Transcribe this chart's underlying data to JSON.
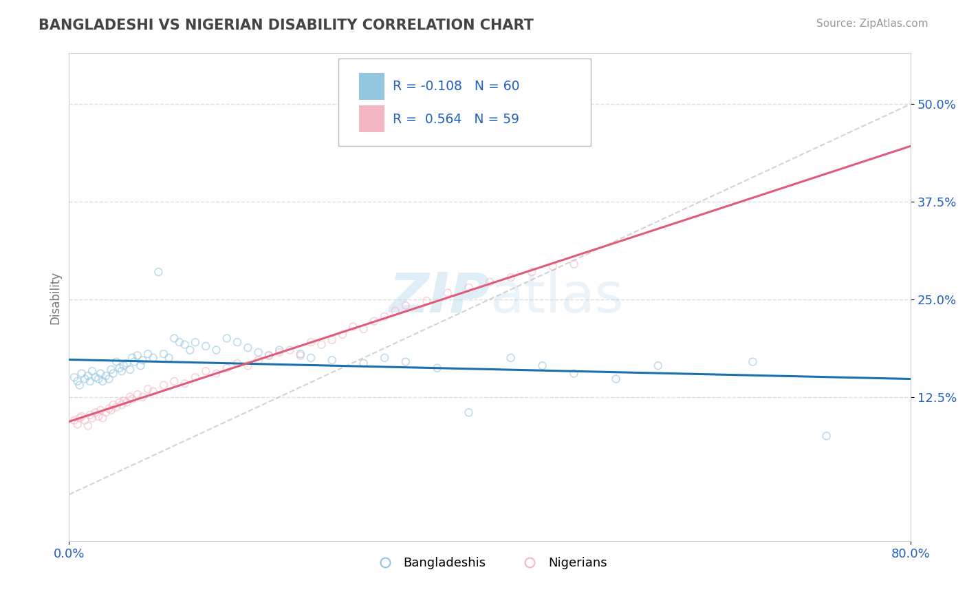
{
  "title": "BANGLADESHI VS NIGERIAN DISABILITY CORRELATION CHART",
  "source": "Source: ZipAtlas.com",
  "ylabel": "Disability",
  "xlim": [
    0.0,
    0.8
  ],
  "ylim": [
    -0.06,
    0.565
  ],
  "yticks": [
    0.125,
    0.25,
    0.375,
    0.5
  ],
  "ytick_labels": [
    "12.5%",
    "25.0%",
    "37.5%",
    "50.0%"
  ],
  "xticks": [
    0.0,
    0.8
  ],
  "xtick_labels": [
    "0.0%",
    "80.0%"
  ],
  "bangladeshi_R": -0.108,
  "bangladeshi_N": 60,
  "nigerian_R": 0.564,
  "nigerian_N": 59,
  "blue_scatter_color": "#92c5de",
  "pink_scatter_color": "#f4b6c2",
  "blue_line_color": "#1a6faf",
  "pink_line_color": "#e05a7a",
  "ref_line_color": "#c8c8c8",
  "title_color": "#444444",
  "source_color": "#999999",
  "legend_text_color": "#2060c0",
  "axis_color": "#cccccc",
  "grid_color": "#dddddd",
  "grid_style": "--",
  "watermark_color": "#cce5f5",
  "watermark_alpha": 0.5,
  "bangladeshi_x": [
    0.005,
    0.008,
    0.01,
    0.012,
    0.015,
    0.018,
    0.02,
    0.022,
    0.025,
    0.028,
    0.03,
    0.032,
    0.035,
    0.038,
    0.04,
    0.042,
    0.045,
    0.048,
    0.05,
    0.052,
    0.055,
    0.058,
    0.06,
    0.062,
    0.065,
    0.068,
    0.07,
    0.075,
    0.08,
    0.085,
    0.09,
    0.095,
    0.1,
    0.105,
    0.11,
    0.115,
    0.12,
    0.13,
    0.14,
    0.15,
    0.16,
    0.17,
    0.18,
    0.19,
    0.2,
    0.22,
    0.23,
    0.25,
    0.28,
    0.3,
    0.32,
    0.35,
    0.38,
    0.42,
    0.45,
    0.48,
    0.52,
    0.56,
    0.65,
    0.72
  ],
  "bangladeshi_y": [
    0.15,
    0.145,
    0.14,
    0.155,
    0.148,
    0.152,
    0.145,
    0.158,
    0.15,
    0.148,
    0.155,
    0.145,
    0.152,
    0.148,
    0.16,
    0.155,
    0.17,
    0.162,
    0.158,
    0.165,
    0.168,
    0.16,
    0.175,
    0.17,
    0.178,
    0.165,
    0.172,
    0.18,
    0.175,
    0.285,
    0.18,
    0.175,
    0.2,
    0.195,
    0.192,
    0.185,
    0.195,
    0.19,
    0.185,
    0.2,
    0.195,
    0.188,
    0.182,
    0.178,
    0.185,
    0.18,
    0.175,
    0.172,
    0.168,
    0.175,
    0.17,
    0.162,
    0.105,
    0.175,
    0.165,
    0.155,
    0.148,
    0.165,
    0.17,
    0.075
  ],
  "nigerian_x": [
    0.005,
    0.008,
    0.01,
    0.012,
    0.015,
    0.018,
    0.02,
    0.022,
    0.025,
    0.028,
    0.03,
    0.032,
    0.035,
    0.038,
    0.04,
    0.042,
    0.045,
    0.048,
    0.05,
    0.052,
    0.055,
    0.058,
    0.06,
    0.065,
    0.07,
    0.075,
    0.08,
    0.09,
    0.1,
    0.11,
    0.12,
    0.13,
    0.14,
    0.15,
    0.16,
    0.17,
    0.18,
    0.19,
    0.2,
    0.21,
    0.22,
    0.23,
    0.24,
    0.25,
    0.26,
    0.27,
    0.28,
    0.29,
    0.3,
    0.31,
    0.32,
    0.34,
    0.36,
    0.38,
    0.4,
    0.42,
    0.44,
    0.46,
    0.48
  ],
  "nigerian_y": [
    0.095,
    0.09,
    0.098,
    0.1,
    0.095,
    0.088,
    0.102,
    0.098,
    0.105,
    0.1,
    0.108,
    0.098,
    0.105,
    0.11,
    0.108,
    0.115,
    0.112,
    0.118,
    0.115,
    0.12,
    0.118,
    0.125,
    0.122,
    0.128,
    0.125,
    0.135,
    0.132,
    0.14,
    0.145,
    0.142,
    0.15,
    0.158,
    0.155,
    0.162,
    0.168,
    0.165,
    0.172,
    0.178,
    0.182,
    0.185,
    0.178,
    0.195,
    0.192,
    0.198,
    0.205,
    0.215,
    0.212,
    0.222,
    0.228,
    0.235,
    0.242,
    0.248,
    0.258,
    0.265,
    0.272,
    0.278,
    0.285,
    0.292,
    0.295
  ],
  "marker_size": 60,
  "marker_alpha": 0.6,
  "marker_linewidth": 1.2
}
